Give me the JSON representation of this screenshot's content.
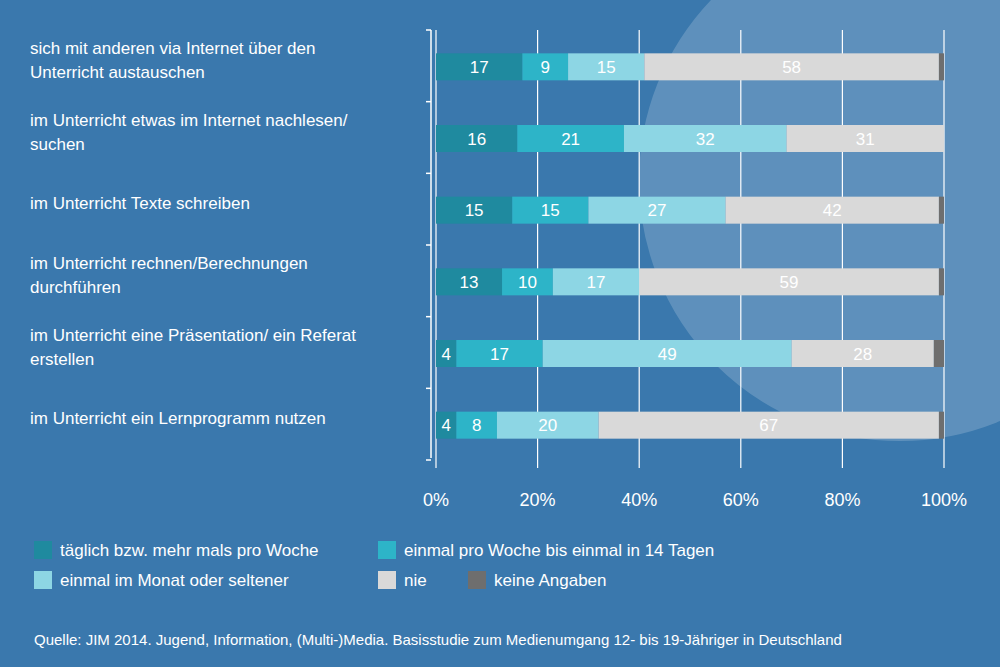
{
  "chart_data": {
    "type": "bar",
    "orientation": "horizontal",
    "stacked": true,
    "data_labels": true,
    "grid": true,
    "legend": "bottom",
    "source": "Quelle: JIM 2014. Jugend, Information, (Multi-)Media. Basisstudie zum Medienumgang 12- bis 19-Jähriger in Deutschland",
    "categories": [
      "sich mit anderen via Internet über den Unterricht austauschen",
      "im Unterricht etwas im Internet nachlesen/ suchen",
      "im Unterricht Texte schreiben",
      "im Unterricht rechnen/Berechnungen durchführen",
      "im Unterricht eine Präsentation/ ein Referat erstellen",
      "im Unterricht ein Lernprogramm nutzen"
    ],
    "series": [
      {
        "name": "täglich bzw. mehr mals pro Woche",
        "color": "#1f8a9f",
        "values": [
          17,
          16,
          15,
          13,
          4,
          4
        ]
      },
      {
        "name": "einmal pro Woche bis einmal in 14 Tagen",
        "color": "#2db4c8",
        "values": [
          9,
          21,
          15,
          10,
          17,
          8
        ]
      },
      {
        "name": "einmal im Monat oder seltener",
        "color": "#8dd6e4",
        "values": [
          15,
          32,
          27,
          17,
          49,
          20
        ]
      },
      {
        "name": "nie",
        "color": "#d9d9d9",
        "values": [
          58,
          31,
          42,
          59,
          28,
          67
        ]
      },
      {
        "name": "keine Angaben",
        "color": "#6e6e6e",
        "values": [
          1,
          0,
          1,
          1,
          2,
          1
        ],
        "data_labels": false
      }
    ],
    "xlim": [
      0,
      100
    ],
    "xticks": [
      {
        "value": 0,
        "label": "0%"
      },
      {
        "value": 20,
        "label": "20%"
      },
      {
        "value": 40,
        "label": "40%"
      },
      {
        "value": 60,
        "label": "60%"
      },
      {
        "value": 80,
        "label": "80%"
      },
      {
        "value": 100,
        "label": "100%"
      }
    ]
  }
}
